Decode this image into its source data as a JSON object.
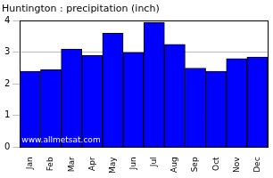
{
  "chart_data": {
    "type": "bar",
    "title": "Huntington : precipitation (inch)",
    "categories": [
      "Jan",
      "Feb",
      "Mar",
      "Apr",
      "May",
      "Jun",
      "Jul",
      "Aug",
      "Sep",
      "Oct",
      "Nov",
      "Dec"
    ],
    "values": [
      2.4,
      2.45,
      3.1,
      2.9,
      3.6,
      3.0,
      3.95,
      3.25,
      2.5,
      2.4,
      2.8,
      2.85
    ],
    "color": "#0000ff",
    "ylim": [
      0,
      4
    ],
    "yticks": [
      0,
      1,
      2,
      3,
      4
    ],
    "grid": true,
    "annotations": [
      "www.allmetsat.com"
    ]
  }
}
